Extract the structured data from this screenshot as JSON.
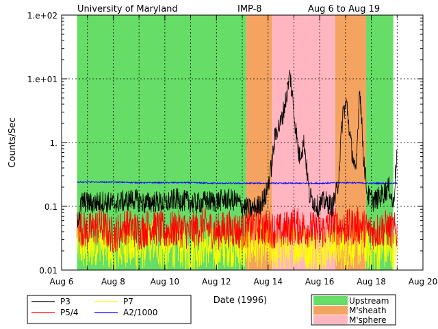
{
  "chart_data": {
    "type": "line",
    "title": {
      "institution": "University of Maryland",
      "spacecraft": "IMP-8",
      "date_range": "Aug 6 to Aug 19"
    },
    "xlabel": "Date (1996)",
    "ylabel": "Counts/Sec",
    "y_scale": "log",
    "ylim": [
      0.01,
      100
    ],
    "y_ticks": [
      {
        "value": 100,
        "label": "1.e+02"
      },
      {
        "value": 10,
        "label": "1.e+01"
      },
      {
        "value": 1,
        "label": "1."
      },
      {
        "value": 0.1,
        "label": "0.1"
      },
      {
        "value": 0.01,
        "label": "0.01"
      }
    ],
    "xlim_days": [
      6,
      20
    ],
    "x_ticks": [
      {
        "value": 6,
        "label": "Aug 6"
      },
      {
        "value": 8,
        "label": "Aug 8"
      },
      {
        "value": 10,
        "label": "Aug 10"
      },
      {
        "value": 12,
        "label": "Aug 12"
      },
      {
        "value": 14,
        "label": "Aug 14"
      },
      {
        "value": 16,
        "label": "Aug 16"
      },
      {
        "value": 18,
        "label": "Aug 18"
      },
      {
        "value": 20,
        "label": "Aug 20"
      }
    ],
    "data_span_days": [
      6.6,
      19.05
    ],
    "regions": [
      {
        "type": "Upstream",
        "start": 6.6,
        "end": 13.15
      },
      {
        "type": "M'sheath",
        "start": 13.15,
        "end": 14.15
      },
      {
        "type": "M'sphere",
        "start": 14.15,
        "end": 16.6
      },
      {
        "type": "M'sheath",
        "start": 16.6,
        "end": 17.8
      },
      {
        "type": "Upstream",
        "start": 17.8,
        "end": 18.85
      }
    ],
    "region_legend": [
      {
        "name": "Upstream",
        "color": "#66dd66"
      },
      {
        "name": "M'sheath",
        "color": "#f4a460"
      },
      {
        "name": "M'sphere",
        "color": "#ffb6c1"
      }
    ],
    "series": [
      {
        "name": "P3",
        "color": "#000000",
        "points": [
          [
            6.6,
            0.06
          ],
          [
            6.8,
            0.12
          ],
          [
            7.2,
            0.11
          ],
          [
            7.6,
            0.12
          ],
          [
            8.0,
            0.11
          ],
          [
            8.4,
            0.12
          ],
          [
            8.8,
            0.13
          ],
          [
            9.2,
            0.11
          ],
          [
            9.6,
            0.12
          ],
          [
            10.0,
            0.11
          ],
          [
            10.4,
            0.13
          ],
          [
            10.8,
            0.12
          ],
          [
            11.2,
            0.11
          ],
          [
            11.6,
            0.12
          ],
          [
            12.0,
            0.12
          ],
          [
            12.4,
            0.13
          ],
          [
            12.8,
            0.12
          ],
          [
            13.0,
            0.1
          ],
          [
            13.3,
            0.09
          ],
          [
            13.6,
            0.1
          ],
          [
            13.9,
            0.14
          ],
          [
            14.1,
            0.35
          ],
          [
            14.3,
            1.5
          ],
          [
            14.5,
            2.0
          ],
          [
            14.7,
            5.0
          ],
          [
            14.85,
            12.0
          ],
          [
            15.0,
            3.0
          ],
          [
            15.2,
            0.6
          ],
          [
            15.4,
            1.0
          ],
          [
            15.6,
            0.15
          ],
          [
            15.9,
            0.1
          ],
          [
            16.2,
            0.12
          ],
          [
            16.5,
            0.1
          ],
          [
            16.7,
            0.2
          ],
          [
            16.9,
            3.0
          ],
          [
            17.05,
            4.0
          ],
          [
            17.2,
            1.0
          ],
          [
            17.4,
            0.3
          ],
          [
            17.55,
            8.0
          ],
          [
            17.7,
            0.6
          ],
          [
            17.85,
            0.15
          ],
          [
            18.1,
            0.12
          ],
          [
            18.4,
            0.15
          ],
          [
            18.7,
            0.2
          ],
          [
            18.85,
            0.1
          ],
          [
            19.0,
            0.75
          ]
        ]
      },
      {
        "name": "P5/4",
        "color": "#ff0000",
        "points": [
          [
            6.6,
            0.05
          ],
          [
            7.0,
            0.04
          ],
          [
            7.5,
            0.05
          ],
          [
            8.0,
            0.035
          ],
          [
            8.5,
            0.05
          ],
          [
            9.0,
            0.04
          ],
          [
            9.5,
            0.05
          ],
          [
            10.0,
            0.04
          ],
          [
            10.5,
            0.045
          ],
          [
            11.0,
            0.04
          ],
          [
            11.5,
            0.05
          ],
          [
            12.0,
            0.04
          ],
          [
            12.5,
            0.045
          ],
          [
            13.0,
            0.04
          ],
          [
            13.5,
            0.05
          ],
          [
            14.0,
            0.045
          ],
          [
            14.5,
            0.04
          ],
          [
            15.0,
            0.05
          ],
          [
            15.5,
            0.045
          ],
          [
            16.0,
            0.04
          ],
          [
            16.5,
            0.05
          ],
          [
            17.0,
            0.045
          ],
          [
            17.5,
            0.05
          ],
          [
            18.0,
            0.04
          ],
          [
            18.5,
            0.045
          ],
          [
            19.0,
            0.04
          ]
        ]
      },
      {
        "name": "P7",
        "color": "#ffff00",
        "points": [
          [
            6.6,
            0.025
          ],
          [
            7.0,
            0.02
          ],
          [
            7.5,
            0.03
          ],
          [
            8.0,
            0.018
          ],
          [
            8.5,
            0.025
          ],
          [
            9.0,
            0.02
          ],
          [
            9.5,
            0.03
          ],
          [
            10.0,
            0.02
          ],
          [
            10.5,
            0.025
          ],
          [
            11.0,
            0.02
          ],
          [
            11.5,
            0.025
          ],
          [
            12.0,
            0.02
          ],
          [
            12.5,
            0.025
          ],
          [
            13.0,
            0.02
          ],
          [
            13.5,
            0.025
          ],
          [
            14.0,
            0.022
          ],
          [
            14.5,
            0.02
          ],
          [
            15.0,
            0.025
          ],
          [
            15.5,
            0.022
          ],
          [
            16.0,
            0.02
          ],
          [
            16.5,
            0.025
          ],
          [
            17.0,
            0.022
          ],
          [
            17.5,
            0.025
          ],
          [
            18.0,
            0.02
          ],
          [
            18.5,
            0.022
          ],
          [
            19.0,
            0.02
          ]
        ]
      },
      {
        "name": "A2/1000",
        "color": "#0000ff",
        "points": [
          [
            6.6,
            0.24
          ],
          [
            7.0,
            0.24
          ],
          [
            8.0,
            0.24
          ],
          [
            9.0,
            0.235
          ],
          [
            10.0,
            0.235
          ],
          [
            11.0,
            0.235
          ],
          [
            12.0,
            0.23
          ],
          [
            13.0,
            0.23
          ],
          [
            14.0,
            0.23
          ],
          [
            15.0,
            0.23
          ],
          [
            16.0,
            0.23
          ],
          [
            17.0,
            0.235
          ],
          [
            18.0,
            0.23
          ],
          [
            19.0,
            0.23
          ]
        ]
      }
    ],
    "legend_series": [
      {
        "name": "P3",
        "color": "#000000"
      },
      {
        "name": "P7",
        "color": "#ffff00"
      },
      {
        "name": "P5/4",
        "color": "#ff0000"
      },
      {
        "name": "A2/1000",
        "color": "#0000ff"
      }
    ]
  }
}
